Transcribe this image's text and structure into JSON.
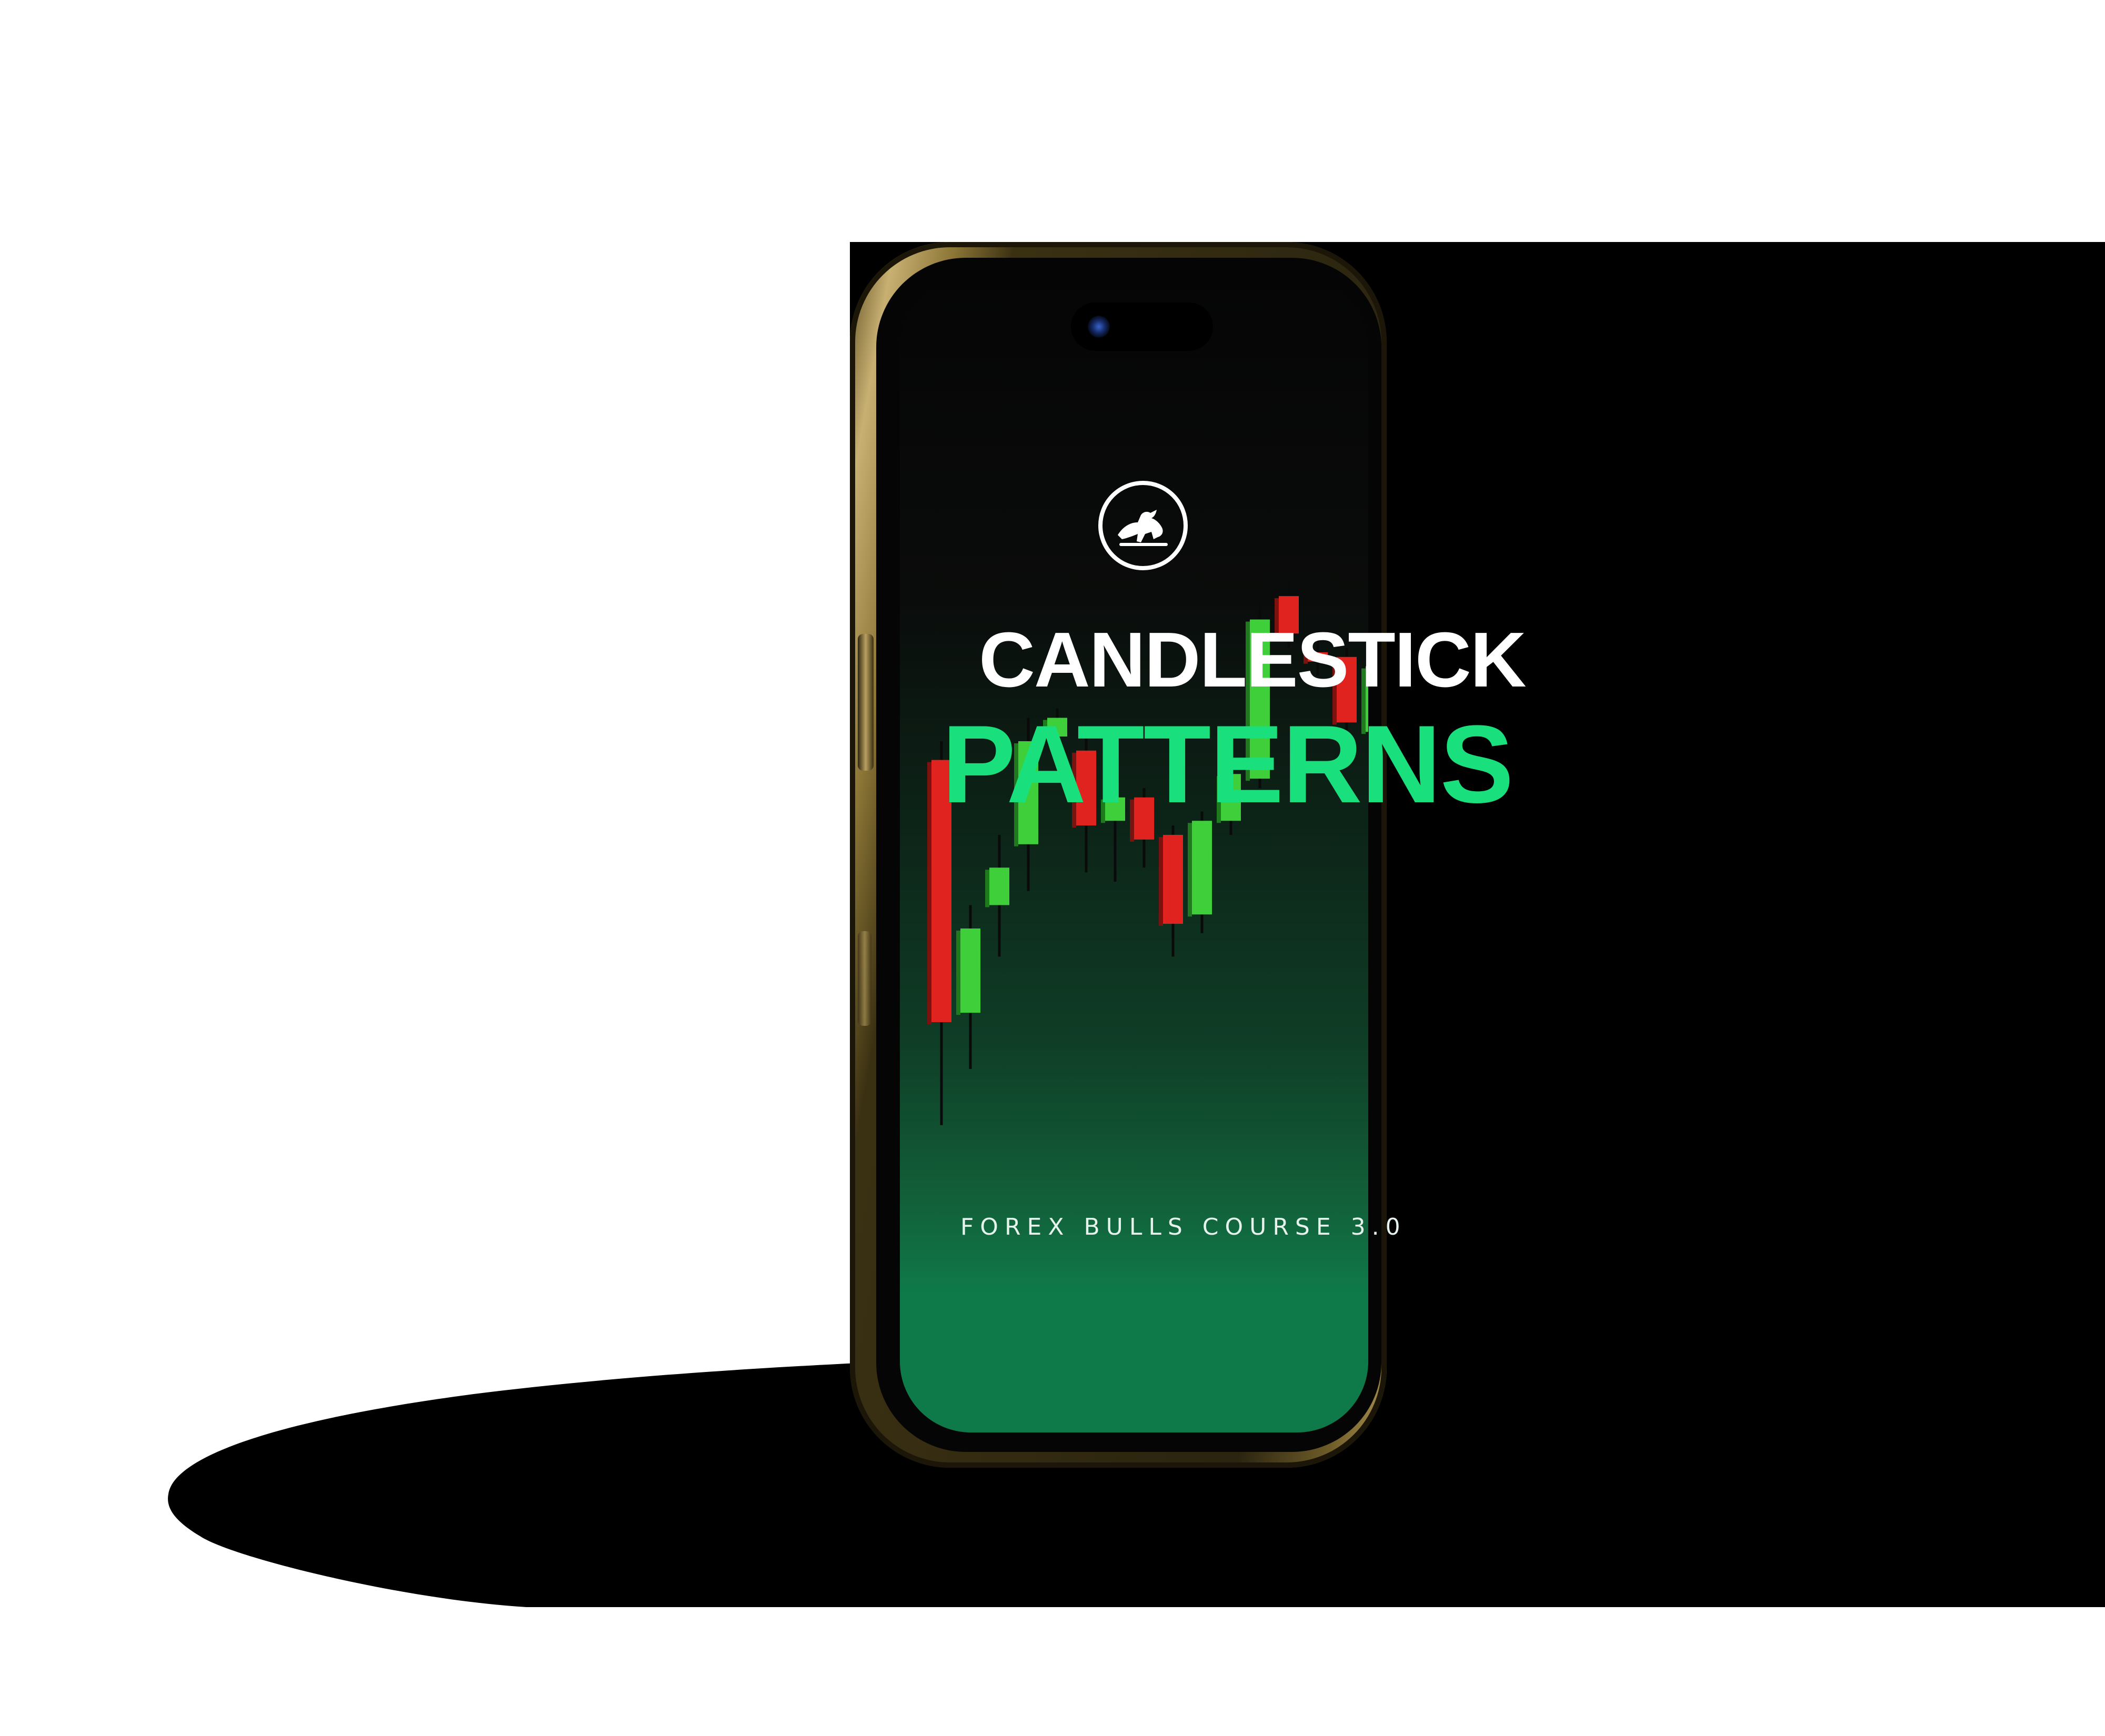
{
  "screen": {
    "title_line1": "CANDLESTICK",
    "title_line2": "PATTERNS",
    "subtitle": "FOREX BULLS COURSE 3.0",
    "logo_icon": "bull-logo-icon"
  },
  "colors": {
    "accent_green": "#19e07d",
    "bull_candle": "#3fcf3a",
    "bear_candle": "#e0231f",
    "frame_gold": "#c8b072"
  },
  "chart_data": {
    "type": "candlestick",
    "series": [
      {
        "dir": "bear",
        "open": 0.86,
        "close": 0.3,
        "high": 0.9,
        "low": 0.08
      },
      {
        "dir": "bull",
        "open": 0.32,
        "close": 0.5,
        "high": 0.55,
        "low": 0.2
      },
      {
        "dir": "bull",
        "open": 0.55,
        "close": 0.63,
        "high": 0.7,
        "low": 0.44
      },
      {
        "dir": "bull",
        "open": 0.68,
        "close": 0.9,
        "high": 0.95,
        "low": 0.58
      },
      {
        "dir": "bull",
        "open": 0.91,
        "close": 0.95,
        "high": 0.97,
        "low": 0.85
      },
      {
        "dir": "bear",
        "open": 0.88,
        "close": 0.72,
        "high": 0.91,
        "low": 0.62
      },
      {
        "dir": "bull",
        "open": 0.73,
        "close": 0.78,
        "high": 0.84,
        "low": 0.6
      },
      {
        "dir": "bear",
        "open": 0.78,
        "close": 0.69,
        "high": 0.8,
        "low": 0.63
      },
      {
        "dir": "bear",
        "open": 0.7,
        "close": 0.51,
        "high": 0.72,
        "low": 0.44
      },
      {
        "dir": "bull",
        "open": 0.53,
        "close": 0.73,
        "high": 0.75,
        "low": 0.49
      },
      {
        "dir": "bull",
        "open": 0.73,
        "close": 0.83,
        "high": 0.86,
        "low": 0.7
      },
      {
        "dir": "bull",
        "open": 0.82,
        "close": 1.16,
        "high": 1.2,
        "low": 0.8
      },
      {
        "dir": "bear",
        "open": 1.21,
        "close": 1.13,
        "high": 1.25,
        "low": 1.1
      },
      {
        "dir": "bear",
        "open": 1.09,
        "close": 1.07,
        "high": 1.12,
        "low": 1.04
      },
      {
        "dir": "bear",
        "open": 1.08,
        "close": 0.94,
        "high": 1.1,
        "low": 0.9
      },
      {
        "dir": "bull",
        "open": 0.92,
        "close": 1.06,
        "high": 1.1,
        "low": 0.88
      }
    ]
  }
}
